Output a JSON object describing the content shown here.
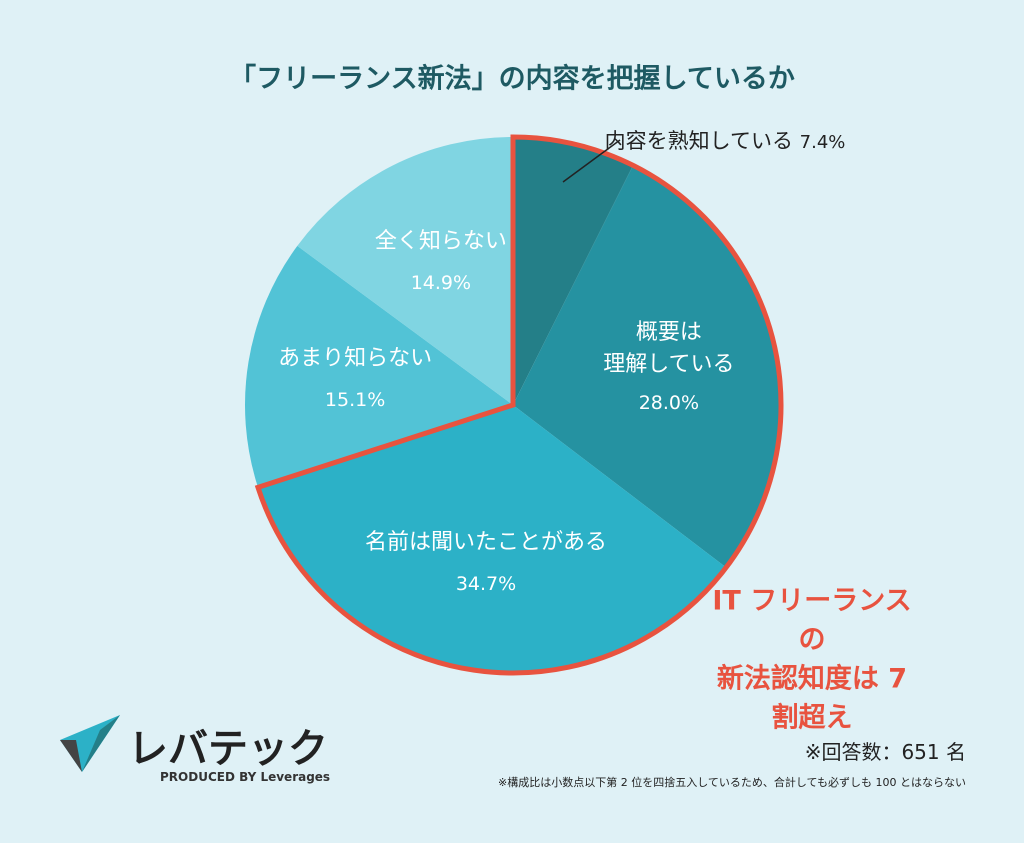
{
  "chart_data": {
    "type": "pie",
    "title": "「フリーランス新法」の内容を把握しているか",
    "categories": [
      "内容を熟知している",
      "概要は\n理解している",
      "名前は聞いたことがある",
      "あまり知らない",
      "全く知らない"
    ],
    "values": [
      7.4,
      28.0,
      34.7,
      15.1,
      14.9
    ],
    "value_labels": [
      "7.4%",
      "28.0%",
      "34.7%",
      "15.1%",
      "14.9%"
    ],
    "colors": [
      "#247f88",
      "#2592a1",
      "#2cb1c7",
      "#52c3d6",
      "#80d5e2"
    ],
    "annotation": "IT フリーランスの\n新法認知度は 7 割超え",
    "highlight_color": "#e8533f"
  },
  "footer": {
    "logo": "レバテック",
    "producer": "PRODUCED BY Leverages",
    "respondents": "※回答数：651 名",
    "note": "※構成比は小数点以下第 2 位を四捨五入しているため、合計しても必ずしも 100 とはならない"
  }
}
